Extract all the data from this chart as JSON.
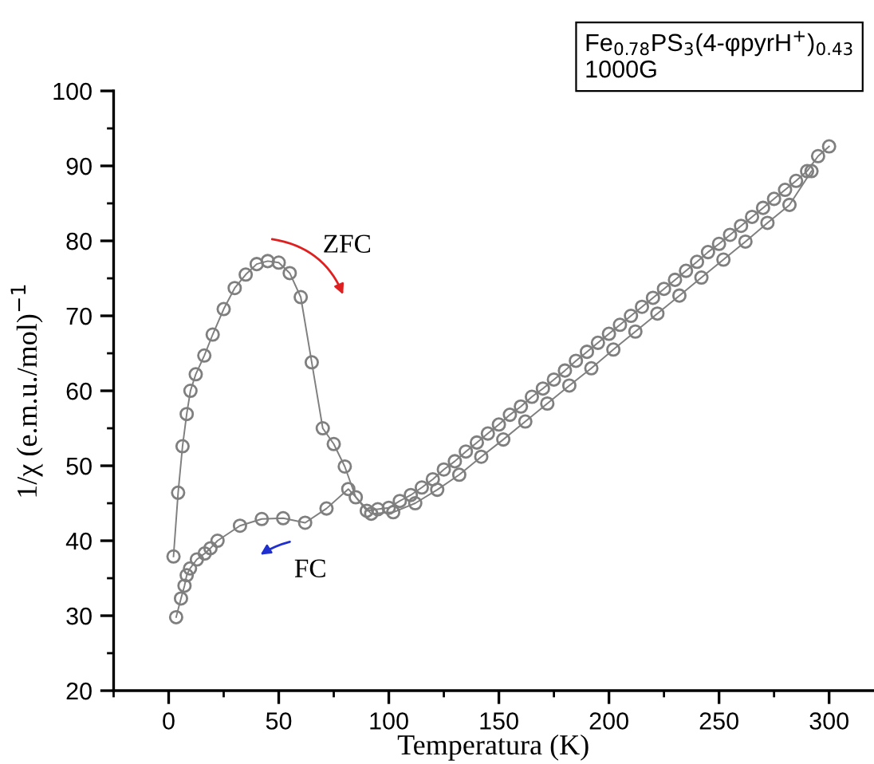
{
  "chart_data": {
    "type": "line",
    "xlabel": "Temperatura (K)",
    "ylabel": "1/χ (e.m.u./mol)$^{−1}$",
    "annotations": [
      "Fe$_{0.78}$PS$_{3}$(4-φpyrH$^{+}$)$_{0.43}$\n1000G"
    ],
    "xlim": [
      -25,
      320
    ],
    "xticks": [
      0,
      50,
      100,
      150,
      200,
      250,
      300
    ],
    "ylim": [
      20,
      100
    ],
    "yticks": [
      20,
      30,
      40,
      50,
      60,
      70,
      80,
      90,
      100
    ],
    "grid": false,
    "legend": false,
    "marker": "circle",
    "line_style": "solid",
    "series": [
      {
        "name": "ZFC",
        "color": "#7f7f7f",
        "x": [
          2.2,
          4.3,
          6.3,
          8.2,
          9.9,
          12.3,
          16.2,
          20,
          25,
          30,
          35,
          40,
          45,
          50,
          55,
          60,
          65,
          70,
          75,
          80,
          85,
          90,
          95,
          100,
          105,
          110,
          115,
          120,
          125,
          130,
          135,
          140,
          145,
          150,
          155,
          160,
          165,
          170,
          175,
          180,
          185,
          190,
          195,
          200,
          205,
          210,
          215,
          220,
          225,
          230,
          235,
          240,
          245,
          250,
          255,
          260,
          265,
          270,
          275,
          280,
          285,
          290,
          295,
          300
        ],
        "values": [
          37.9,
          46.4,
          52.6,
          56.9,
          60.0,
          62.2,
          64.7,
          67.5,
          70.9,
          73.7,
          75.5,
          76.9,
          77.3,
          77.1,
          75.7,
          72.5,
          63.8,
          55.0,
          52.9,
          49.9,
          45.8,
          44.0,
          44.2,
          44.4,
          45.3,
          46.1,
          47.1,
          48.2,
          49.5,
          50.6,
          51.9,
          53.1,
          54.3,
          55.5,
          56.8,
          57.9,
          59.2,
          60.3,
          61.5,
          62.7,
          64.0,
          65.2,
          66.4,
          67.6,
          68.8,
          70.0,
          71.2,
          72.4,
          73.6,
          74.8,
          76.0,
          77.2,
          78.5,
          79.6,
          80.8,
          82.0,
          83.2,
          84.4,
          85.6,
          86.8,
          88.0,
          89.3,
          91.3,
          92.6
        ]
      },
      {
        "name": "FC",
        "color": "#7f7f7f",
        "x": [
          3.4,
          5.6,
          7.2,
          8.2,
          9.7,
          12.8,
          16.4,
          19,
          22.2,
          32.4,
          42.3,
          52,
          62,
          71.7,
          81.6,
          92,
          102,
          112,
          122,
          132,
          142,
          152,
          162,
          172,
          182,
          192,
          202,
          212,
          222,
          232,
          242,
          252,
          262,
          272,
          282,
          292
        ],
        "values": [
          29.8,
          32.3,
          34.0,
          35.4,
          36.3,
          37.5,
          38.3,
          39.0,
          40.0,
          42.0,
          42.9,
          43.0,
          42.4,
          44.3,
          46.9,
          43.6,
          43.8,
          45.0,
          46.8,
          48.8,
          51.2,
          53.5,
          55.9,
          58.3,
          60.7,
          63.0,
          65.5,
          67.9,
          70.3,
          72.7,
          75.1,
          77.5,
          79.9,
          82.4,
          84.8,
          89.3
        ]
      }
    ]
  }
}
